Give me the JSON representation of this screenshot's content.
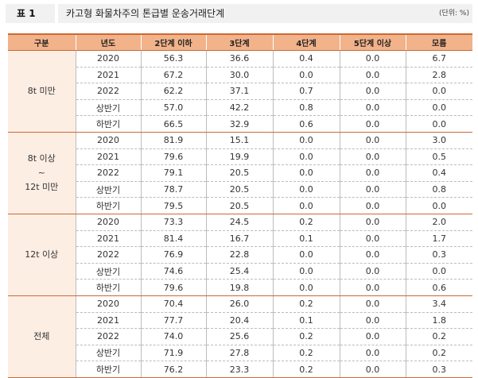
{
  "title": {
    "label": "표 1",
    "text": "카고형 화물차주의 톤급별 운송거래단계",
    "unit": "(단위: %)"
  },
  "table": {
    "headers": [
      "구분",
      "년도",
      "2단계 이하",
      "3단계",
      "4단계",
      "5단계 이상",
      "모름"
    ],
    "groups": [
      {
        "label": "8t 미만",
        "rows": [
          [
            "2020",
            "56.3",
            "36.6",
            "0.4",
            "0.0",
            "6.7"
          ],
          [
            "2021",
            "67.2",
            "30.0",
            "0.0",
            "0.0",
            "2.8"
          ],
          [
            "2022",
            "62.2",
            "37.1",
            "0.7",
            "0.0",
            "0.0"
          ],
          [
            "상반기",
            "57.0",
            "42.2",
            "0.8",
            "0.0",
            "0.0"
          ],
          [
            "하반기",
            "66.5",
            "32.9",
            "0.6",
            "0.0",
            "0.0"
          ]
        ]
      },
      {
        "label": "8t 이상\n~\n12t 미만",
        "rows": [
          [
            "2020",
            "81.9",
            "15.1",
            "0.0",
            "0.0",
            "3.0"
          ],
          [
            "2021",
            "79.6",
            "19.9",
            "0.0",
            "0.0",
            "0.5"
          ],
          [
            "2022",
            "79.1",
            "20.5",
            "0.0",
            "0.0",
            "0.4"
          ],
          [
            "상반기",
            "78.7",
            "20.5",
            "0.0",
            "0.0",
            "0.8"
          ],
          [
            "하반기",
            "79.5",
            "20.5",
            "0.0",
            "0.0",
            "0.0"
          ]
        ]
      },
      {
        "label": "12t 이상",
        "rows": [
          [
            "2020",
            "73.3",
            "24.5",
            "0.2",
            "0.0",
            "2.0"
          ],
          [
            "2021",
            "81.4",
            "16.7",
            "0.1",
            "0.0",
            "1.7"
          ],
          [
            "2022",
            "76.9",
            "22.8",
            "0.0",
            "0.0",
            "0.3"
          ],
          [
            "상반기",
            "74.6",
            "25.4",
            "0.0",
            "0.0",
            "0.0"
          ],
          [
            "하반기",
            "79.6",
            "19.8",
            "0.0",
            "0.0",
            "0.6"
          ]
        ]
      },
      {
        "label": "전체",
        "rows": [
          [
            "2020",
            "70.4",
            "26.0",
            "0.2",
            "0.0",
            "3.4"
          ],
          [
            "2021",
            "77.7",
            "20.4",
            "0.1",
            "0.0",
            "1.8"
          ],
          [
            "2022",
            "74.0",
            "25.6",
            "0.2",
            "0.0",
            "0.2"
          ],
          [
            "상반기",
            "71.9",
            "27.8",
            "0.2",
            "0.0",
            "0.2"
          ],
          [
            "하반기",
            "76.2",
            "23.3",
            "0.2",
            "0.0",
            "0.3"
          ]
        ]
      }
    ]
  }
}
